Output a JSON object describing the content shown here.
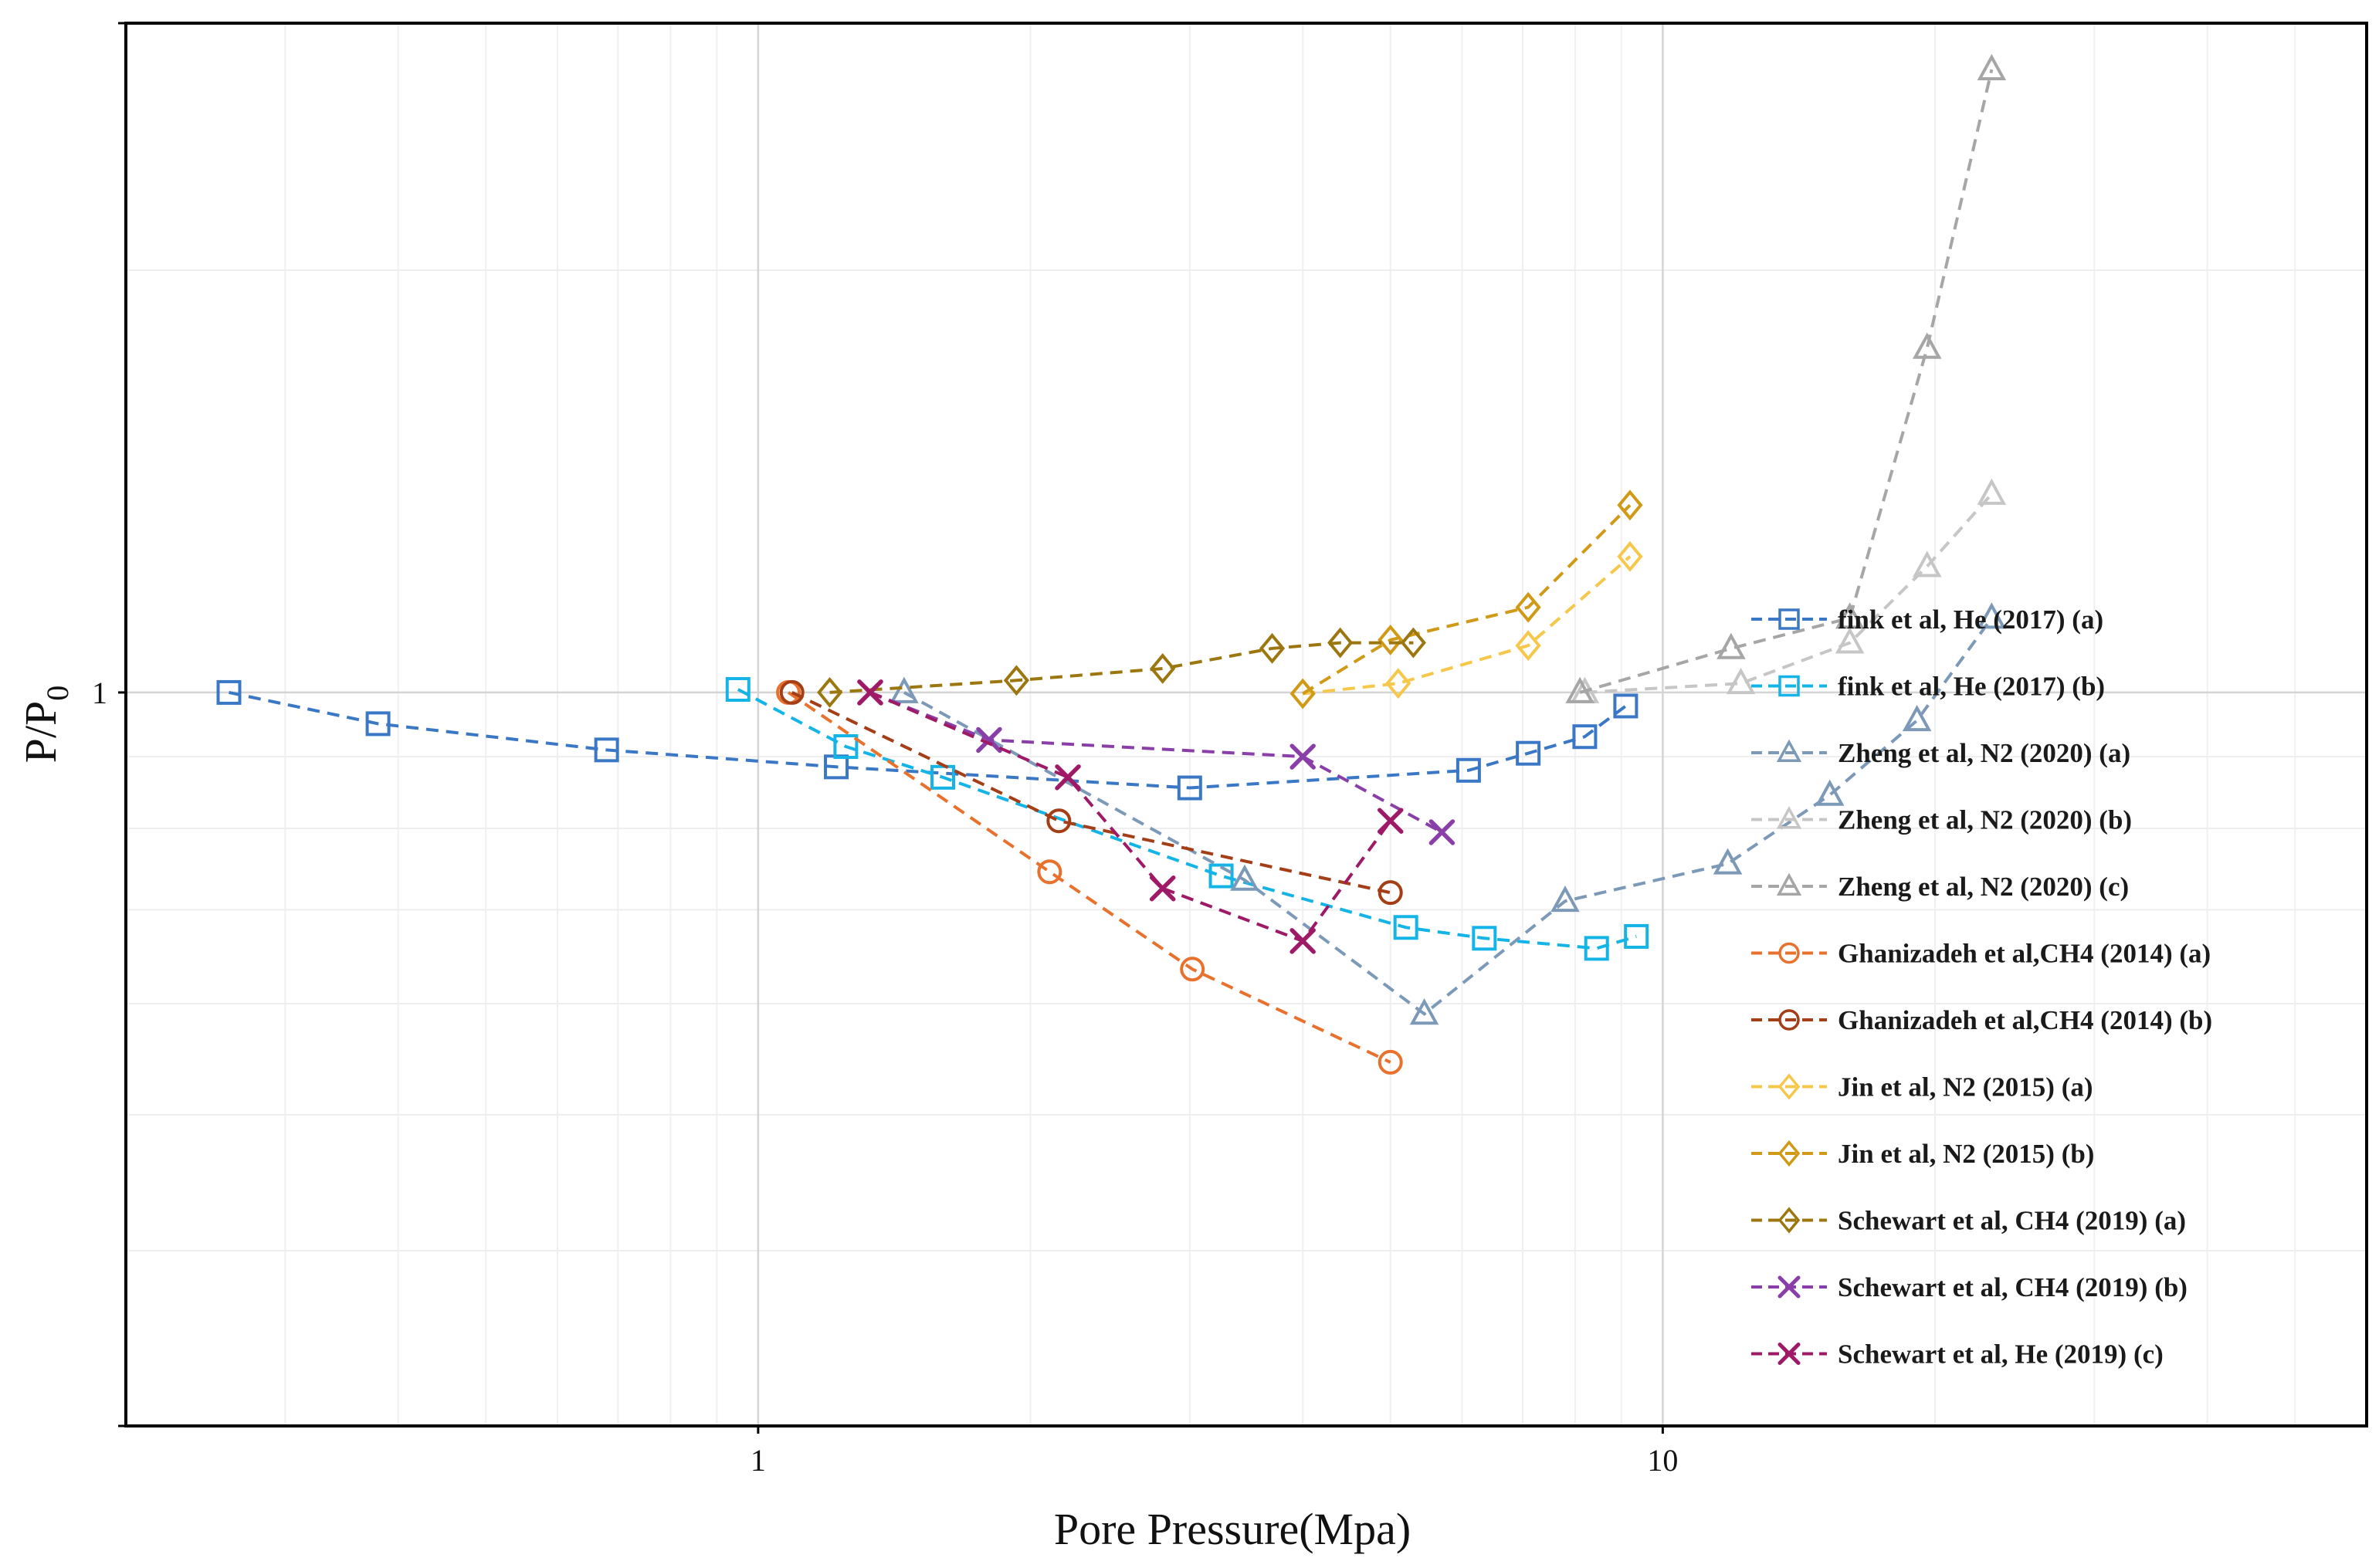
{
  "chart_data": {
    "type": "line",
    "title": "",
    "xlabel": "Pore Pressure(Mpa)",
    "ylabel": "P/P",
    "ylabel_subscript": "0",
    "x_scale": "log",
    "y_scale": "log",
    "xlim": [
      0.2,
      60
    ],
    "ylim": [
      0.3,
      3.0
    ],
    "x_ticks": [
      1,
      10
    ],
    "x_tick_labels": [
      "1",
      "10"
    ],
    "y_ticks": [
      1
    ],
    "y_tick_labels": [
      "1"
    ],
    "grid": true,
    "legend_position": "right",
    "series": [
      {
        "name": "fink et al, He (2017) (a)",
        "color": "#3a78c6",
        "marker": "square",
        "x": [
          0.26,
          0.38,
          0.68,
          1.22,
          3.0,
          6.1,
          7.1,
          8.2,
          9.1
        ],
        "y": [
          1.0,
          0.95,
          0.91,
          0.885,
          0.855,
          0.88,
          0.905,
          0.93,
          0.978
        ]
      },
      {
        "name": "fink et al, He (2017) (b)",
        "color": "#14b4e6",
        "marker": "square",
        "x": [
          0.95,
          1.25,
          1.6,
          3.25,
          5.2,
          6.35,
          8.45,
          9.35
        ],
        "y": [
          1.005,
          0.915,
          0.87,
          0.74,
          0.68,
          0.668,
          0.657,
          0.67
        ]
      },
      {
        "name": "Zheng et al, N2 (2020) (a)",
        "color": "#7d99b8",
        "marker": "triangle",
        "x": [
          1.45,
          3.45,
          5.45,
          7.8,
          11.8,
          15.3,
          19.1,
          23.1
        ],
        "y": [
          1.0,
          0.735,
          0.59,
          0.71,
          0.755,
          0.845,
          0.955,
          1.13
        ]
      },
      {
        "name": "Zheng et al, N2 (2020) (b)",
        "color": "#c6c6c6",
        "marker": "triangle",
        "x": [
          8.2,
          12.2,
          16.1,
          19.6,
          23.1
        ],
        "y": [
          1.0,
          1.015,
          1.085,
          1.23,
          1.385
        ]
      },
      {
        "name": "Zheng et al, N2 (2020) (c)",
        "color": "#a6a6a6",
        "marker": "triangle",
        "x": [
          8.1,
          11.9,
          16.1,
          19.6,
          23.1
        ],
        "y": [
          1.0,
          1.075,
          1.13,
          1.76,
          2.78
        ]
      },
      {
        "name": "Ghanizadeh et al,CH4 (2014) (a)",
        "color": "#e8712d",
        "marker": "circle",
        "x": [
          1.08,
          2.1,
          3.02,
          5.0
        ],
        "y": [
          1.0,
          0.745,
          0.635,
          0.545
        ]
      },
      {
        "name": "Ghanizadeh et al,CH4 (2014) (b)",
        "color": "#a33e16",
        "marker": "circle",
        "x": [
          1.09,
          2.15,
          5.0
        ],
        "y": [
          1.0,
          0.81,
          0.72
        ]
      },
      {
        "name": "Jin et al, N2 (2015) (a)",
        "color": "#f5c84c",
        "marker": "diamond",
        "x": [
          4.0,
          5.1,
          7.1,
          9.2
        ],
        "y": [
          0.998,
          1.015,
          1.08,
          1.25
        ]
      },
      {
        "name": "Jin et al, N2 (2015) (b)",
        "color": "#d19a16",
        "marker": "diamond",
        "x": [
          4.0,
          5.0,
          7.1,
          9.2
        ],
        "y": [
          0.998,
          1.09,
          1.15,
          1.36
        ]
      },
      {
        "name": "Schewart et al, CH4 (2019) (a)",
        "color": "#9c7710",
        "marker": "diamond",
        "x": [
          1.2,
          1.93,
          2.8,
          3.7,
          4.4,
          5.3
        ],
        "y": [
          1.0,
          1.02,
          1.04,
          1.075,
          1.085,
          1.085
        ]
      },
      {
        "name": "Schewart et al, CH4 (2019) (b)",
        "color": "#8a3fa8",
        "marker": "x",
        "x": [
          1.33,
          1.8,
          4.0,
          5.7
        ],
        "y": [
          1.0,
          0.925,
          0.9,
          0.795
        ]
      },
      {
        "name": "Schewart et al, He (2019) (c)",
        "color": "#9e1a66",
        "marker": "x",
        "x": [
          1.33,
          2.2,
          2.8,
          4.0,
          5.0
        ],
        "y": [
          1.0,
          0.87,
          0.725,
          0.665,
          0.81
        ]
      }
    ]
  }
}
